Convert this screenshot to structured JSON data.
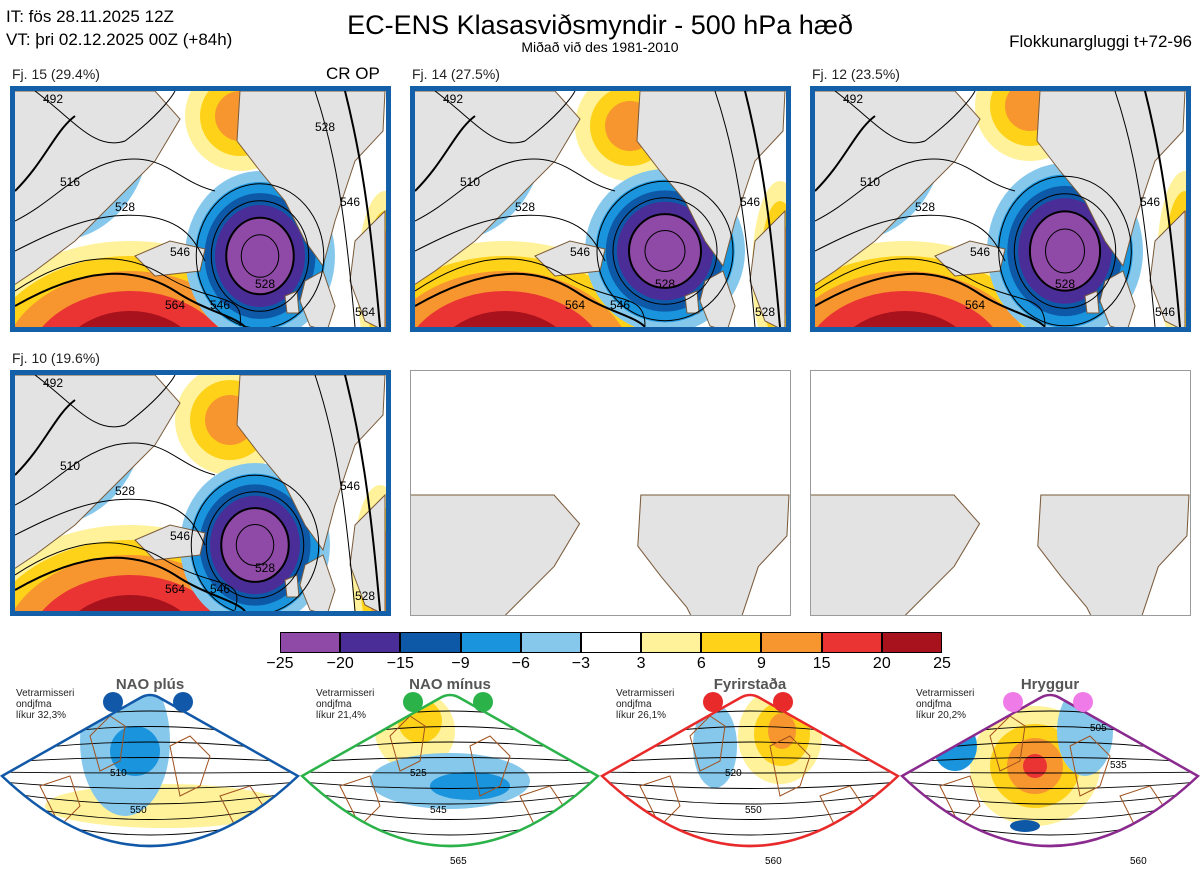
{
  "header": {
    "init_line": "IT: fös 28.11.2025 12Z",
    "valid_line": "VT: þri 02.12.2025 00Z  (+84h)",
    "title": "EC-ENS Klasasviðsmyndir - 500 hPa hæð",
    "subtitle": "Miðað við des 1981-2010",
    "window_label": "Flokkunargluggi t+72-96"
  },
  "panels": [
    {
      "label": "Fj. 15 (29.4%)",
      "tag": "CR OP",
      "framed": true,
      "contour_labels": [
        "492",
        "516",
        "528",
        "546",
        "564",
        "528",
        "546",
        "564",
        "546",
        "528"
      ]
    },
    {
      "label": "Fj. 14 (27.5%)",
      "tag": "",
      "framed": true,
      "contour_labels": [
        "492",
        "510",
        "528",
        "546",
        "564",
        "528",
        "546",
        "528",
        "546"
      ]
    },
    {
      "label": "Fj. 12 (23.5%)",
      "tag": "",
      "framed": true,
      "contour_labels": [
        "492",
        "510",
        "528",
        "546",
        "564",
        "528",
        "546",
        "546"
      ]
    },
    {
      "label": "Fj. 10 (19.6%)",
      "tag": "",
      "framed": true,
      "contour_labels": [
        "492",
        "510",
        "528",
        "546",
        "564",
        "528",
        "546",
        "528",
        "546"
      ]
    },
    {
      "label": "",
      "tag": "",
      "framed": false,
      "contour_labels": []
    },
    {
      "label": "",
      "tag": "",
      "framed": false,
      "contour_labels": []
    }
  ],
  "colorbar": {
    "ticks": [
      "−25",
      "−20",
      "−15",
      "−9",
      "−6",
      "−3",
      "3",
      "6",
      "9",
      "15",
      "20",
      "25"
    ],
    "colors": [
      "#8e4aa6",
      "#4b2d98",
      "#0e58a8",
      "#1a94dc",
      "#86c8ec",
      "#ffffff",
      "#fff29a",
      "#ffd21a",
      "#f7962e",
      "#ea3434",
      "#a8121c"
    ]
  },
  "regimes": [
    {
      "title": "NAO plús",
      "note": [
        "Vetrarmisseri",
        "ondjfma",
        "líkur 32,3%"
      ],
      "dot_color": "#1159a8",
      "frame_color": "#1159a8",
      "contour_labels": [
        "510",
        "550"
      ]
    },
    {
      "title": "NAO mínus",
      "note": [
        "Vetrarmisseri",
        "ondjfma",
        "líkur 21,4%"
      ],
      "dot_color": "#2bb34a",
      "frame_color": "#2bb34a",
      "contour_labels": [
        "525",
        "545",
        "565"
      ]
    },
    {
      "title": "Fyrirstaða",
      "note": [
        "Vetrarmisseri",
        "ondjfma",
        "líkur 26,1%"
      ],
      "dot_color": "#e82a2a",
      "frame_color": "#e82a2a",
      "contour_labels": [
        "520",
        "550",
        "560"
      ]
    },
    {
      "title": "Hryggur",
      "note": [
        "Vetrarmisseri",
        "ondjfma",
        "líkur 20,2%"
      ],
      "dot_color": "#ee7be8",
      "frame_color": "#8a2a8e",
      "contour_labels": [
        "505",
        "535",
        "560"
      ]
    }
  ],
  "chart_data": {
    "type": "heatmap",
    "title": "EC-ENS Klasasviðsmyndir - 500 hPa hæð",
    "subtitle": "Miðað við des 1981-2010",
    "panels": [
      "Fj. 15 (29.4%)",
      "Fj. 14 (27.5%)",
      "Fj. 12 (23.5%)",
      "Fj. 10 (19.6%)"
    ],
    "probabilities_percent": [
      29.4,
      27.5,
      23.5,
      19.6
    ],
    "colorbar_bounds": [
      -25,
      -20,
      -15,
      -9,
      -6,
      -3,
      3,
      6,
      9,
      15,
      20,
      25
    ],
    "regimes": [
      {
        "name": "NAO plús",
        "probability_percent": 32.3
      },
      {
        "name": "NAO mínus",
        "probability_percent": 21.4
      },
      {
        "name": "Fyrirstaða",
        "probability_percent": 26.1
      },
      {
        "name": "Hryggur",
        "probability_percent": 20.2
      }
    ]
  }
}
